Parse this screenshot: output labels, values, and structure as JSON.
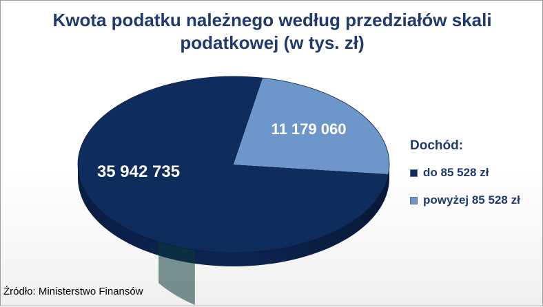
{
  "chart_data": {
    "type": "pie",
    "title_lines": [
      "Kwota podatku należnego według przedziałów skali",
      "podatkowej (w tys. zł)"
    ],
    "legend_title": "Dochód:",
    "slices": [
      {
        "label": "do 85 528 zł",
        "value": 35942735,
        "value_label": "35 942 735",
        "color": "#0f2d5c"
      },
      {
        "label": "powyżej 85 528 zł",
        "value": 11179060,
        "value_label": "11 179 060",
        "color": "#6d97cb"
      }
    ],
    "legend_position": "right"
  },
  "source": "Źródło: Ministerstwo Finansów"
}
